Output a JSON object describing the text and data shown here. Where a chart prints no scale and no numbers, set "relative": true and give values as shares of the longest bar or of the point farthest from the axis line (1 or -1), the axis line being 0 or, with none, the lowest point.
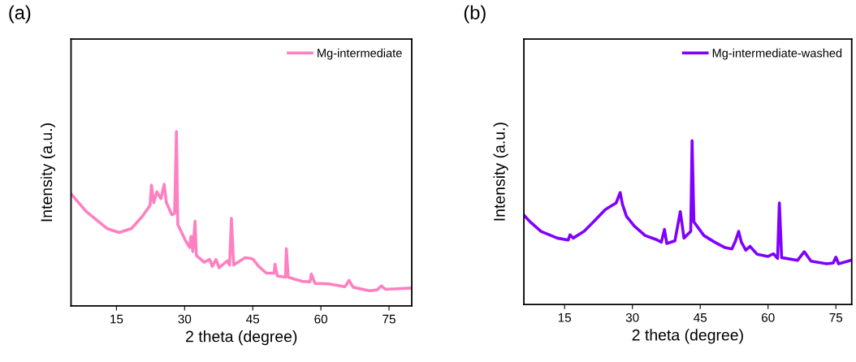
{
  "chart_data": [
    {
      "type": "line",
      "title": "(a)",
      "xlabel": "2 theta (degree)",
      "ylabel": "Intensity (a.u.)",
      "relative": true,
      "xlim": [
        5,
        80
      ],
      "xticks": [
        15,
        30,
        45,
        60,
        75
      ],
      "legend": "top right",
      "grid": false,
      "series": [
        {
          "name": "Mg-intermediate",
          "color": "#ff80c0",
          "x": [
            5.1,
            8.2,
            12.9,
            15.6,
            18.3,
            20.7,
            22.4,
            22.7,
            23.2,
            23.9,
            24.8,
            25.5,
            26.0,
            27.2,
            27.8,
            28.2,
            28.5,
            30.2,
            31.1,
            31.4,
            31.8,
            32.3,
            32.6,
            34.3,
            35.5,
            36.1,
            36.9,
            37.6,
            39.4,
            39.9,
            40.3,
            40.8,
            43.3,
            44.5,
            45.1,
            46.3,
            48.0,
            49.7,
            49.9,
            50.4,
            52.2,
            52.4,
            52.8,
            55.8,
            57.6,
            57.9,
            58.7,
            61.7,
            65.3,
            66.2,
            67.1,
            70.7,
            72.4,
            73.3,
            74.2,
            79.7
          ],
          "values": [
            0.64,
            0.545,
            0.444,
            0.421,
            0.444,
            0.514,
            0.576,
            0.693,
            0.592,
            0.654,
            0.615,
            0.697,
            0.592,
            0.522,
            0.53,
            1.0,
            0.467,
            0.374,
            0.335,
            0.398,
            0.312,
            0.486,
            0.289,
            0.25,
            0.266,
            0.227,
            0.266,
            0.219,
            0.258,
            0.234,
            0.502,
            0.234,
            0.276,
            0.273,
            0.266,
            0.227,
            0.188,
            0.188,
            0.239,
            0.172,
            0.165,
            0.328,
            0.165,
            0.141,
            0.138,
            0.183,
            0.129,
            0.126,
            0.11,
            0.146,
            0.107,
            0.087,
            0.092,
            0.115,
            0.095,
            0.102
          ]
        }
      ]
    },
    {
      "type": "line",
      "title": "(b)",
      "xlabel": "2 theta (degree)",
      "ylabel": "Intensity (a.u.)",
      "relative": true,
      "xlim": [
        6,
        78.5
      ],
      "xticks": [
        15,
        30,
        45,
        60,
        75
      ],
      "legend": "top right",
      "grid": false,
      "series": [
        {
          "name": "Mg-intermediate-washed",
          "color": "#8000ff",
          "x": [
            6.0,
            7.4,
            9.8,
            13.4,
            15.8,
            16.2,
            16.9,
            19.3,
            21.1,
            24.0,
            26.4,
            27.3,
            27.8,
            28.7,
            30.4,
            32.8,
            35.2,
            36.4,
            37.1,
            37.6,
            39.4,
            40.6,
            41.4,
            42.9,
            43.2,
            43.6,
            45.8,
            48.2,
            50.5,
            52.0,
            52.8,
            53.5,
            54.1,
            55.1,
            56.0,
            57.6,
            60.0,
            61.2,
            62.1,
            62.5,
            63.0,
            66.5,
            68.0,
            69.5,
            73.0,
            74.4,
            75.0,
            75.6,
            78.3
          ],
          "values": [
            0.545,
            0.504,
            0.446,
            0.405,
            0.393,
            0.425,
            0.405,
            0.446,
            0.496,
            0.579,
            0.62,
            0.683,
            0.612,
            0.537,
            0.479,
            0.421,
            0.397,
            0.38,
            0.458,
            0.372,
            0.388,
            0.567,
            0.405,
            0.446,
            1.0,
            0.504,
            0.421,
            0.38,
            0.347,
            0.339,
            0.388,
            0.446,
            0.38,
            0.331,
            0.355,
            0.306,
            0.293,
            0.309,
            0.281,
            0.62,
            0.286,
            0.269,
            0.322,
            0.264,
            0.248,
            0.253,
            0.289,
            0.248,
            0.269
          ]
        }
      ]
    }
  ]
}
